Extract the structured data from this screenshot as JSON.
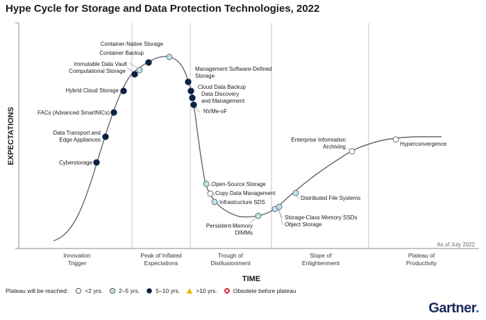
{
  "chart_data": {
    "type": "hype-cycle",
    "title": "Hype Cycle for Storage and Data Protection Technologies, 2022",
    "xlabel": "TIME",
    "ylabel": "EXPECTATIONS",
    "as_of": "As of July 2022",
    "phases": [
      [
        "Innovation",
        "Trigger"
      ],
      [
        "Peak of Inflated",
        "Expectations"
      ],
      [
        "Trough of",
        "Disillusionment"
      ],
      [
        "Slope of",
        "Enlightenment"
      ],
      [
        "Plateau of",
        "Productivity"
      ]
    ],
    "colors": {
      "lt2": "#ffffff",
      "y2to5": "#bfe3f0",
      "y5to10": "#0d2244",
      "gt10": "#f0b400",
      "obsolete": "#d61f26"
    },
    "technologies": [
      {
        "name": "Cyberstorage",
        "plateau": "5-10"
      },
      {
        "name": "Data Transport and Edge Appliances",
        "plateau": "5-10"
      },
      {
        "name": "FACs (Advanced SmartNICs)",
        "plateau": "5-10"
      },
      {
        "name": "Hybrid Cloud Storage",
        "plateau": "5-10"
      },
      {
        "name": "Computational Storage",
        "plateau": "5-10"
      },
      {
        "name": "Immutable Data Vault",
        "plateau": "2-5"
      },
      {
        "name": "Container Backup",
        "plateau": "5-10"
      },
      {
        "name": "Container-Native Storage",
        "plateau": "2-5"
      },
      {
        "name": "Management Software-Defined Storage",
        "plateau": "5-10"
      },
      {
        "name": "Cloud Data Backup",
        "plateau": "5-10"
      },
      {
        "name": "Data Discovery and Management",
        "plateau": "5-10"
      },
      {
        "name": "NVMe-oF",
        "plateau": "5-10"
      },
      {
        "name": "Open-Source Storage",
        "plateau": "2-5"
      },
      {
        "name": "Copy Data Management",
        "plateau": "<2"
      },
      {
        "name": "Infrastructure SDS",
        "plateau": "2-5"
      },
      {
        "name": "Persistent-Memory DIMMs",
        "plateau": "2-5"
      },
      {
        "name": "Storage-Class Memory SSDs",
        "plateau": "2-5"
      },
      {
        "name": "Object Storage",
        "plateau": "2-5"
      },
      {
        "name": "Distributed File Systems",
        "plateau": "2-5"
      },
      {
        "name": "Enterprise Information Archiving",
        "plateau": "<2"
      },
      {
        "name": "Hyperconvergence",
        "plateau": "<2"
      }
    ]
  },
  "legend": {
    "lead": "Plateau will be reached:",
    "items": [
      "<2 yrs.",
      "2–5 yrs.",
      "5–10 yrs.",
      ">10 yrs.",
      "Obsolete before plateau"
    ]
  },
  "brand": {
    "name": "Gartner",
    "dot": "."
  }
}
